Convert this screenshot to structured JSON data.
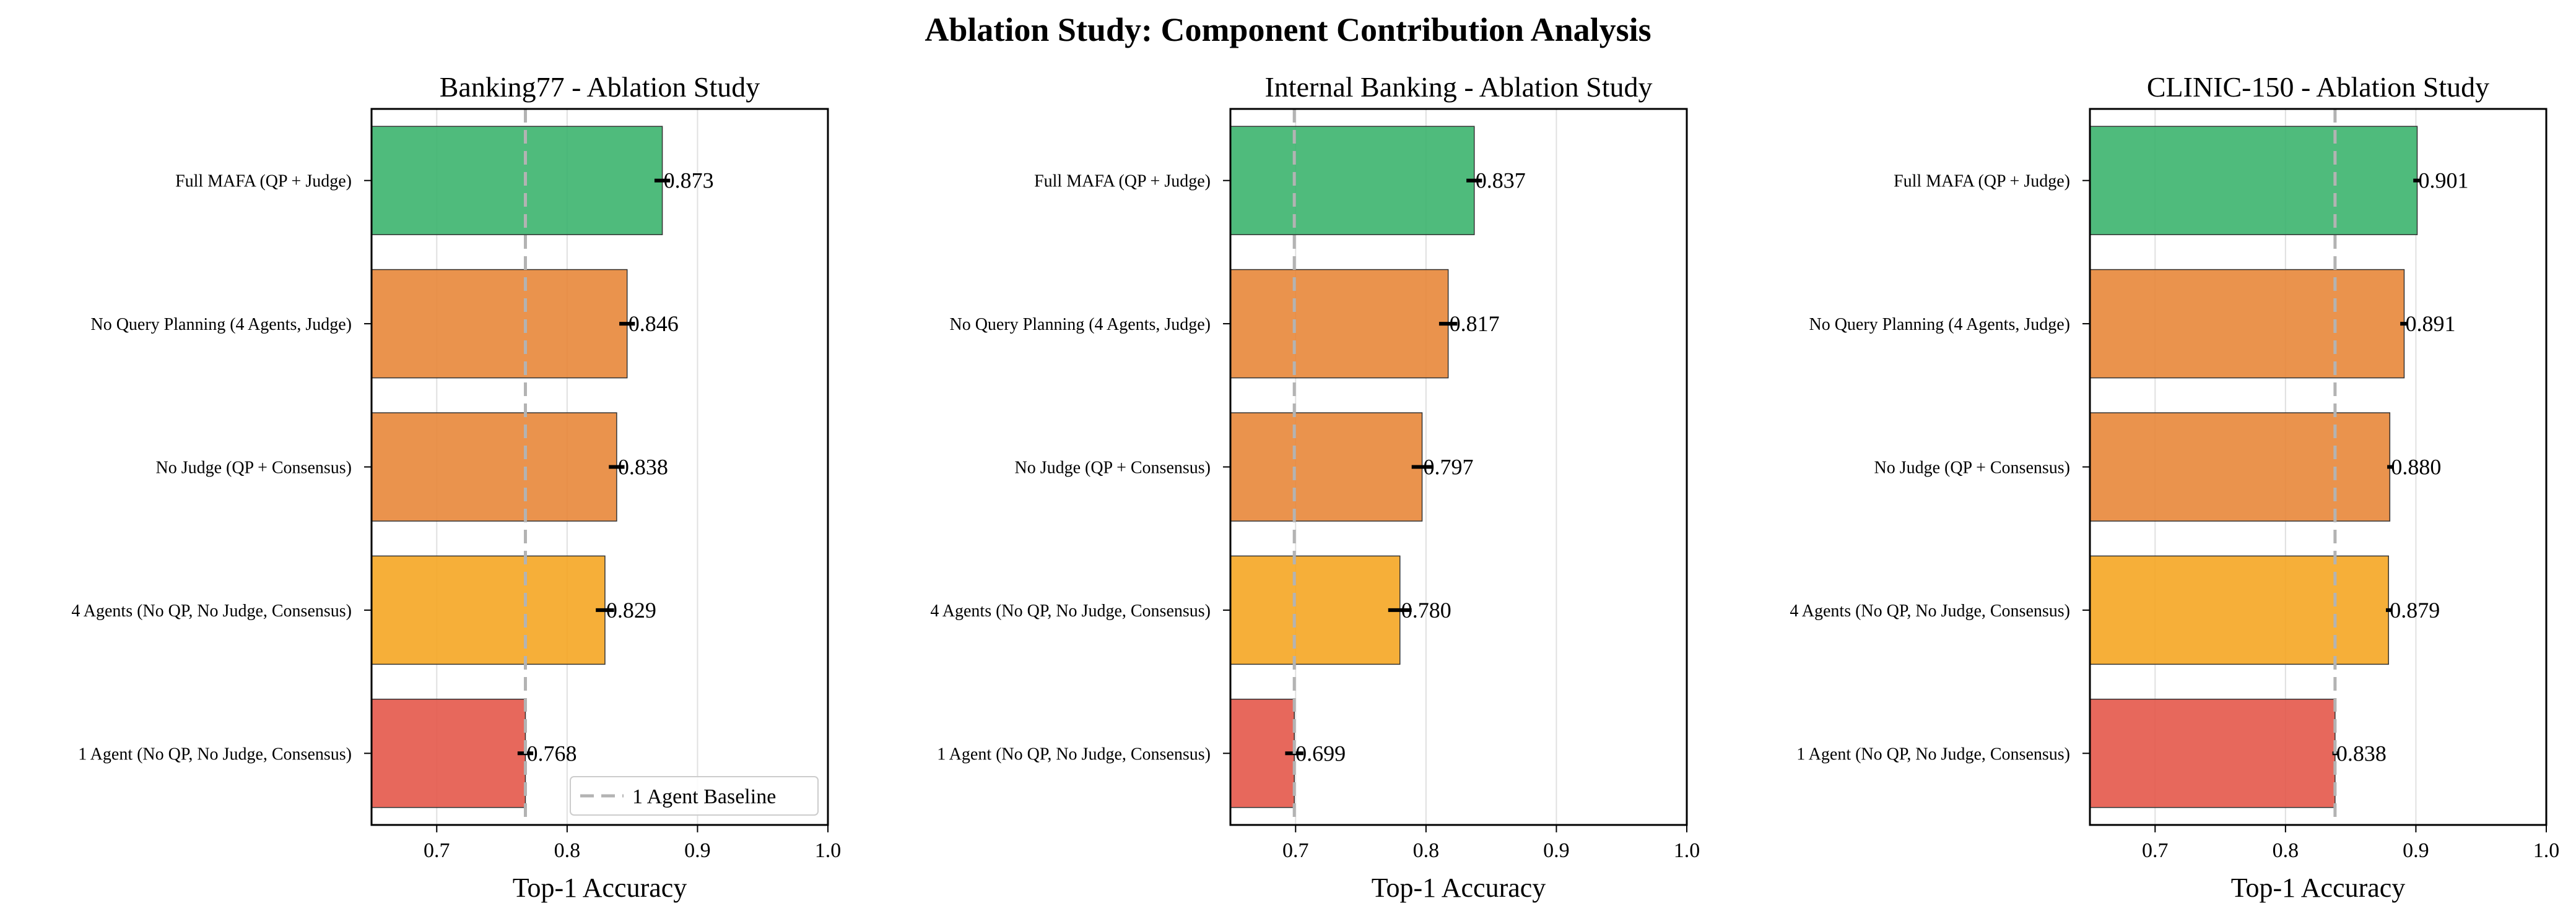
{
  "figure": {
    "title": "Ablation Study: Component Contribution Analysis"
  },
  "colors": {
    "full": "#3cb46e",
    "partial": "#e8873a",
    "agents4": "#f5a623",
    "agent1": "#e4584a",
    "baseline_line": "#b3b3b3",
    "grid": "#e0e0e0",
    "errorbar": "#000000"
  },
  "chart_data": [
    {
      "type": "bar",
      "orientation": "horizontal",
      "title": "Banking77 - Ablation Study",
      "xlabel": "Top-1 Accuracy",
      "xlim": [
        0.65,
        1.0
      ],
      "xticks": [
        "0.7",
        "0.8",
        "0.9",
        "1.0"
      ],
      "grid": true,
      "categories": [
        "Full MAFA (QP + Judge)",
        "No Query Planning (4 Agents, Judge)",
        "No Judge (QP + Consensus)",
        "4 Agents (No QP, No Judge, Consensus)",
        "1 Agent (No QP, No Judge, Consensus)"
      ],
      "values": [
        0.873,
        0.846,
        0.838,
        0.829,
        0.768
      ],
      "value_labels": [
        "0.873",
        "0.846",
        "0.838",
        "0.829",
        "0.768"
      ],
      "errors": [
        0.006,
        0.006,
        0.006,
        0.007,
        0.006
      ],
      "color_keys": [
        "full",
        "partial",
        "partial",
        "agents4",
        "agent1"
      ],
      "baseline": 0.768,
      "legend": {
        "label": "1 Agent Baseline",
        "position": "lower-right"
      }
    },
    {
      "type": "bar",
      "orientation": "horizontal",
      "title": "Internal Banking - Ablation Study",
      "xlabel": "Top-1 Accuracy",
      "xlim": [
        0.65,
        1.0
      ],
      "xticks": [
        "0.7",
        "0.8",
        "0.9",
        "1.0"
      ],
      "grid": true,
      "categories": [
        "Full MAFA (QP + Judge)",
        "No Query Planning (4 Agents, Judge)",
        "No Judge (QP + Consensus)",
        "4 Agents (No QP, No Judge, Consensus)",
        "1 Agent (No QP, No Judge, Consensus)"
      ],
      "values": [
        0.837,
        0.817,
        0.797,
        0.78,
        0.699
      ],
      "value_labels": [
        "0.837",
        "0.817",
        "0.797",
        "0.780",
        "0.699"
      ],
      "errors": [
        0.006,
        0.007,
        0.008,
        0.009,
        0.007
      ],
      "color_keys": [
        "full",
        "partial",
        "partial",
        "agents4",
        "agent1"
      ],
      "baseline": 0.699
    },
    {
      "type": "bar",
      "orientation": "horizontal",
      "title": "CLINIC-150 - Ablation Study",
      "xlabel": "Top-1 Accuracy",
      "xlim": [
        0.65,
        1.0
      ],
      "xticks": [
        "0.7",
        "0.8",
        "0.9",
        "1.0"
      ],
      "grid": true,
      "categories": [
        "Full MAFA (QP + Judge)",
        "No Query Planning (4 Agents, Judge)",
        "No Judge (QP + Consensus)",
        "4 Agents (No QP, No Judge, Consensus)",
        "1 Agent (No QP, No Judge, Consensus)"
      ],
      "values": [
        0.901,
        0.891,
        0.88,
        0.879,
        0.838
      ],
      "value_labels": [
        "0.901",
        "0.891",
        "0.880",
        "0.879",
        "0.838"
      ],
      "errors": [
        0.003,
        0.003,
        0.002,
        0.002,
        0.002
      ],
      "color_keys": [
        "full",
        "partial",
        "partial",
        "agents4",
        "agent1"
      ],
      "baseline": 0.838
    }
  ]
}
